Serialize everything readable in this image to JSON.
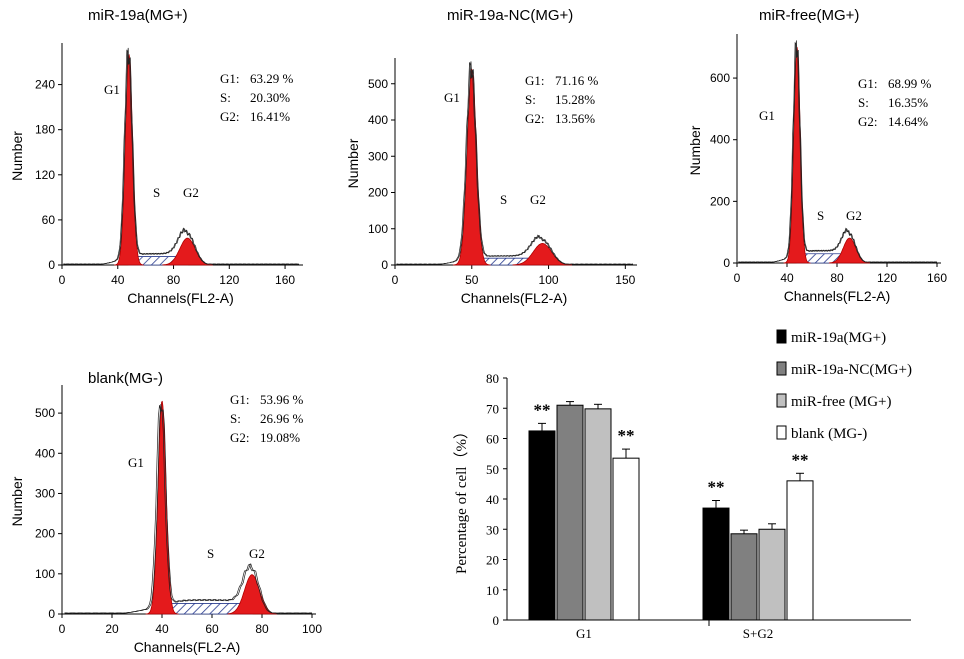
{
  "histograms": [
    {
      "title": "miR-19a(MG+)",
      "ylabel": "Number",
      "xlabel": "Channels(FL2-A)",
      "xlim": [
        0,
        170
      ],
      "ylim": [
        0,
        290
      ],
      "x_ticks": [
        "0",
        "40",
        "80",
        "120",
        "160"
      ],
      "x_tick_values": [
        0,
        40,
        80,
        120,
        160
      ],
      "y_ticks": [
        "0",
        "60",
        "120",
        "180",
        "240"
      ],
      "y_tick_values": [
        0,
        60,
        120,
        180,
        240
      ],
      "phases": {
        "g1": "G1",
        "s": "S",
        "g2": "G2"
      },
      "g1_peak": {
        "center": 48,
        "height": 280,
        "sigma": 2.6
      },
      "g2_peak": {
        "center": 90,
        "height": 42,
        "sigma": 5.5
      },
      "s_level": 15,
      "stats": [
        {
          "label": "G1:",
          "value": "63.29 %"
        },
        {
          "label": "S:",
          "value": "20.30%"
        },
        {
          "label": "G2:",
          "value": "16.41%"
        }
      ]
    },
    {
      "title": "miR-19a-NC(MG+)",
      "ylabel": "Number",
      "xlabel": "Channels(FL2-A)",
      "xlim": [
        0,
        155
      ],
      "ylim": [
        0,
        560
      ],
      "x_ticks": [
        "0",
        "50",
        "100",
        "150"
      ],
      "x_tick_values": [
        0,
        50,
        100,
        150
      ],
      "y_ticks": [
        "0",
        "100",
        "200",
        "300",
        "400",
        "500"
      ],
      "y_tick_values": [
        0,
        100,
        200,
        300,
        400,
        500
      ],
      "phases": {
        "g1": "G1",
        "s": "S",
        "g2": "G2"
      },
      "g1_peak": {
        "center": 50,
        "height": 540,
        "sigma": 3.0
      },
      "g2_peak": {
        "center": 96,
        "height": 70,
        "sigma": 6.0
      },
      "s_level": 25,
      "stats": [
        {
          "label": "G1:",
          "value": "71.16 %"
        },
        {
          "label": "S:",
          "value": "15.28%"
        },
        {
          "label": "G2:",
          "value": "13.56%"
        }
      ]
    },
    {
      "title": "miR-free(MG+)",
      "ylabel": "Number",
      "xlabel": "Channels(FL2-A)",
      "xlim": [
        0,
        160
      ],
      "ylim": [
        0,
        730
      ],
      "x_ticks": [
        "0",
        "40",
        "80",
        "120",
        "160"
      ],
      "x_tick_values": [
        0,
        40,
        80,
        120,
        160
      ],
      "y_ticks": [
        "0",
        "200",
        "400",
        "600"
      ],
      "y_tick_values": [
        0,
        200,
        400,
        600
      ],
      "phases": {
        "g1": "G1",
        "s": "S",
        "g2": "G2"
      },
      "g1_peak": {
        "center": 48,
        "height": 700,
        "sigma": 2.6
      },
      "g2_peak": {
        "center": 90,
        "height": 95,
        "sigma": 5.0
      },
      "s_level": 40,
      "stats": [
        {
          "label": "G1:",
          "value": "68.99 %"
        },
        {
          "label": "S:",
          "value": "16.35%"
        },
        {
          "label": "G2:",
          "value": "14.64%"
        }
      ]
    },
    {
      "title": "blank(MG-)",
      "ylabel": "Number",
      "xlabel": "Channels(FL2-A)",
      "xlim": [
        0,
        100
      ],
      "ylim": [
        0,
        560
      ],
      "x_ticks": [
        "0",
        "20",
        "40",
        "60",
        "80",
        "100"
      ],
      "x_tick_values": [
        0,
        20,
        40,
        60,
        80,
        100
      ],
      "y_ticks": [
        "0",
        "100",
        "200",
        "300",
        "400",
        "500"
      ],
      "y_tick_values": [
        0,
        100,
        200,
        300,
        400,
        500
      ],
      "phases": {
        "g1": "G1",
        "s": "S",
        "g2": "G2"
      },
      "g1_peak": {
        "center": 40,
        "height": 530,
        "sigma": 1.6
      },
      "g2_peak": {
        "center": 76,
        "height": 115,
        "sigma": 3.0
      },
      "s_level": 35,
      "stats": [
        {
          "label": "G1:",
          "value": "53.96 %"
        },
        {
          "label": "S:",
          "value": "26.96 %"
        },
        {
          "label": "G2:",
          "value": "19.08%"
        }
      ]
    }
  ],
  "chart_data": {
    "type": "bar",
    "title": "",
    "xlabel": "",
    "ylabel": "Percentage of cell（%）",
    "ylim": [
      0,
      80
    ],
    "y_ticks": [
      "0",
      "10",
      "20",
      "30",
      "40",
      "50",
      "60",
      "70",
      "80"
    ],
    "y_tick_values": [
      0,
      10,
      20,
      30,
      40,
      50,
      60,
      70,
      80
    ],
    "categories": [
      "G1",
      "S+G2"
    ],
    "series": [
      {
        "name": "miR-19a(MG+)",
        "values": [
          62.5,
          37.0
        ],
        "errors": [
          2.5,
          2.5
        ],
        "color": "#000000"
      },
      {
        "name": "miR-19a-NC(MG+)",
        "values": [
          71.0,
          28.5
        ],
        "errors": [
          1.2,
          1.2
        ],
        "color": "#808080"
      },
      {
        "name": "miR-free (MG+)",
        "values": [
          69.8,
          30.0
        ],
        "errors": [
          1.5,
          1.8
        ],
        "color": "#c0c0c0"
      },
      {
        "name": "blank (MG-)",
        "values": [
          53.5,
          46.0
        ],
        "errors": [
          3.0,
          2.5
        ],
        "color": "#ffffff"
      }
    ],
    "annotations": [
      {
        "text": "**",
        "category": 0,
        "series": 0
      },
      {
        "text": "**",
        "category": 0,
        "series": 3
      },
      {
        "text": "**",
        "category": 1,
        "series": 0
      },
      {
        "text": "**",
        "category": 1,
        "series": 3
      }
    ],
    "legend_position": "top-right"
  }
}
